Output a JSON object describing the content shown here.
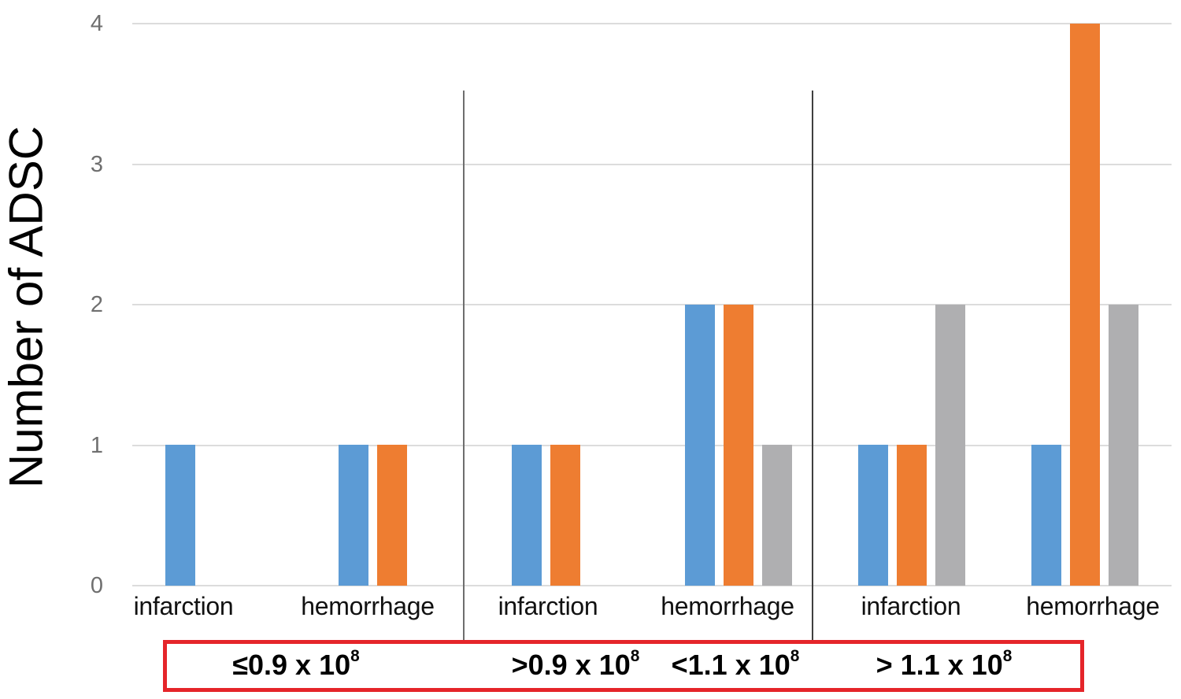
{
  "figure": {
    "background": "#ffffff"
  },
  "chart_data": {
    "type": "bar",
    "title": "",
    "xlabel": "",
    "ylabel": "Number of ADSC",
    "ylim": [
      0,
      4
    ],
    "yticks": [
      "0",
      "1",
      "2",
      "3",
      "4"
    ],
    "grid": "horizontal",
    "gridline_color": "#DCDCDC",
    "tick_label_color": "#6F6F6F",
    "category_label_color": "#111111",
    "legend": "none",
    "categories": [
      "infarction",
      "hemorrhage",
      "infarction",
      "hemorrhage",
      "infarction",
      "hemorrhage"
    ],
    "series": [
      {
        "name": "blue",
        "color": "#5C9BD5",
        "values": [
          1,
          1,
          1,
          2,
          1,
          1
        ]
      },
      {
        "name": "orange",
        "color": "#EE7D31",
        "values": [
          0,
          1,
          1,
          2,
          1,
          4
        ]
      },
      {
        "name": "gray",
        "color": "#AFAFB1",
        "values": [
          0,
          0,
          0,
          1,
          2,
          2
        ]
      }
    ],
    "group_dividers": [
      {
        "color": "#6E6E6E"
      },
      {
        "color": "#3F3F3F"
      }
    ],
    "dose_box_color": "#E5252A",
    "dose_groups": [
      {
        "text": "≤0.9 x 10",
        "sup": "8"
      },
      {
        "text": ">0.9 x 10",
        "sup": "8"
      },
      {
        "text": "<1.1 x 10",
        "sup": "8"
      },
      {
        "text": "> 1.1 x 10",
        "sup": "8"
      }
    ]
  }
}
